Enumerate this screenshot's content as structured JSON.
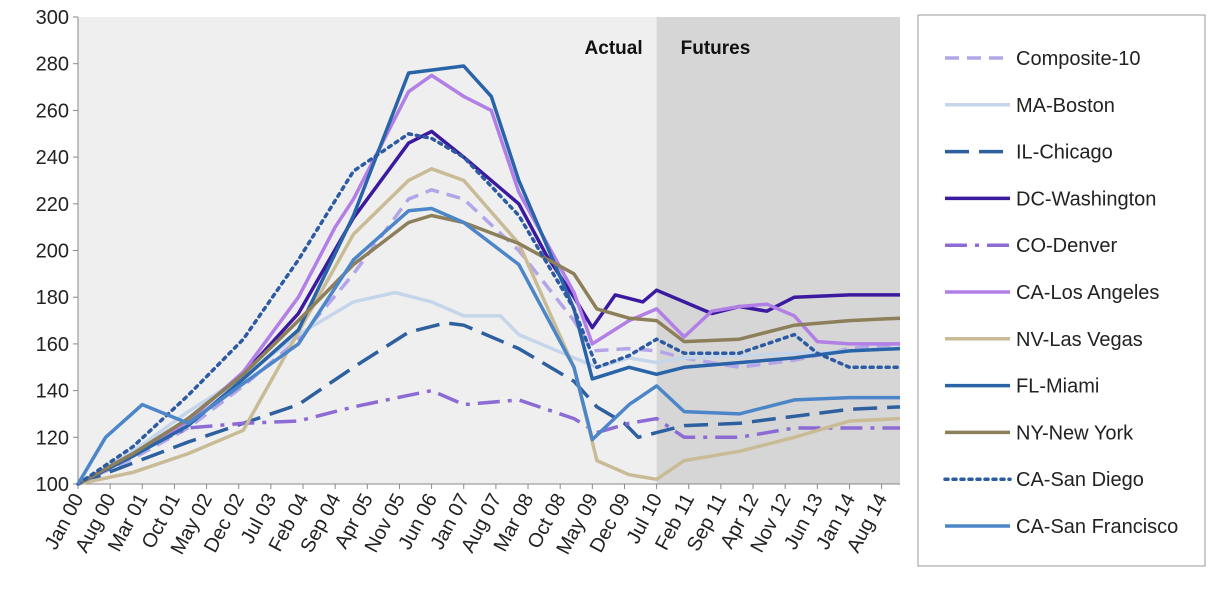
{
  "chart_data": {
    "type": "line",
    "title": "",
    "xlabel": "",
    "ylabel": "",
    "ylim": [
      100,
      300
    ],
    "y_ticks": [
      100,
      120,
      140,
      160,
      180,
      200,
      220,
      240,
      260,
      280,
      300
    ],
    "x_ticks": [
      "Jan 00",
      "Aug 00",
      "Mar 01",
      "Oct 01",
      "May 02",
      "Dec 02",
      "Jul 03",
      "Feb 04",
      "Sep 04",
      "Apr 05",
      "Nov 05",
      "Jun 06",
      "Jan 07",
      "Aug 07",
      "Mar 08",
      "Oct 08",
      "May 09",
      "Dec 09",
      "Jul 10",
      "Feb 11",
      "Sep 11",
      "Apr 12",
      "Nov 12",
      "Jun 13",
      "Jan 14",
      "Aug 14"
    ],
    "x_range": [
      "Jan 00",
      "Dec 14"
    ],
    "grid": false,
    "legend_position": "right",
    "regions": [
      {
        "label": "Actual",
        "from": "Jan 00",
        "to": "Jul 10",
        "color": "#efefef"
      },
      {
        "label": "Futures",
        "from": "Jul 10",
        "to": "Dec 14",
        "color": "#d6d6d6"
      }
    ],
    "series": [
      {
        "name": "Composite-10",
        "color": "#b3a6e8",
        "dash": "14,8",
        "width": 3.5,
        "points": [
          [
            "Jan 00",
            100
          ],
          [
            "Jan 01",
            111
          ],
          [
            "Jan 02",
            124
          ],
          [
            "Jan 03",
            142
          ],
          [
            "Jan 04",
            162
          ],
          [
            "Jan 05",
            190
          ],
          [
            "Jan 06",
            222
          ],
          [
            "Jun 06",
            226
          ],
          [
            "Jan 07",
            222
          ],
          [
            "Jan 08",
            200
          ],
          [
            "Jan 09",
            170
          ],
          [
            "May 09",
            157
          ],
          [
            "Jan 10",
            158
          ],
          [
            "Jul 10",
            157
          ],
          [
            "Jan 11",
            154
          ],
          [
            "Jan 12",
            150
          ],
          [
            "Jan 13",
            153
          ],
          [
            "Jan 14",
            158
          ],
          [
            "Dec 14",
            160
          ]
        ]
      },
      {
        "name": "MA-Boston",
        "color": "#c5d6ea",
        "dash": "",
        "width": 3.5,
        "points": [
          [
            "Jan 00",
            100
          ],
          [
            "Jan 01",
            114
          ],
          [
            "Jan 02",
            131
          ],
          [
            "Jan 03",
            146
          ],
          [
            "Jan 04",
            164
          ],
          [
            "Jan 05",
            178
          ],
          [
            "Oct 05",
            182
          ],
          [
            "Jun 06",
            178
          ],
          [
            "Jan 07",
            172
          ],
          [
            "Sep 07",
            172
          ],
          [
            "Jan 08",
            164
          ],
          [
            "Jan 09",
            154
          ],
          [
            "Jun 09",
            150
          ],
          [
            "Jan 10",
            154
          ],
          [
            "Jul 10",
            152
          ],
          [
            "Jan 11",
            154
          ],
          [
            "Jan 12",
            155
          ],
          [
            "Jan 13",
            156
          ],
          [
            "Jan 14",
            157
          ],
          [
            "Dec 14",
            158
          ]
        ]
      },
      {
        "name": "IL-Chicago",
        "color": "#2e5f9e",
        "dash": "24,10",
        "width": 3.5,
        "points": [
          [
            "Jan 00",
            100
          ],
          [
            "Jan 01",
            109
          ],
          [
            "Jan 02",
            118
          ],
          [
            "Jan 03",
            126
          ],
          [
            "Jan 04",
            134
          ],
          [
            "Jan 05",
            150
          ],
          [
            "Jan 06",
            165
          ],
          [
            "Sep 06",
            169
          ],
          [
            "Jan 07",
            168
          ],
          [
            "Jan 08",
            158
          ],
          [
            "Jan 09",
            144
          ],
          [
            "Jun 09",
            133
          ],
          [
            "Dec 09",
            126
          ],
          [
            "Mar 10",
            120
          ],
          [
            "Jul 10",
            122
          ],
          [
            "Jan 11",
            125
          ],
          [
            "Jan 12",
            126
          ],
          [
            "Jan 13",
            129
          ],
          [
            "Jan 14",
            132
          ],
          [
            "Dec 14",
            133
          ]
        ]
      },
      {
        "name": "DC-Washington",
        "color": "#3c1aa0",
        "dash": "",
        "width": 3.5,
        "points": [
          [
            "Jan 00",
            100
          ],
          [
            "Jan 01",
            112
          ],
          [
            "Jan 02",
            128
          ],
          [
            "Jan 03",
            147
          ],
          [
            "Jan 04",
            173
          ],
          [
            "Jan 05",
            214
          ],
          [
            "Jan 06",
            246
          ],
          [
            "Jun 06",
            251
          ],
          [
            "Jan 07",
            240
          ],
          [
            "Jan 08",
            220
          ],
          [
            "Jul 08",
            198
          ],
          [
            "Jan 09",
            180
          ],
          [
            "May 09",
            167
          ],
          [
            "Oct 09",
            181
          ],
          [
            "Apr 10",
            178
          ],
          [
            "Jul 10",
            183
          ],
          [
            "Jan 11",
            178
          ],
          [
            "Jul 11",
            173
          ],
          [
            "Jan 12",
            176
          ],
          [
            "Jul 12",
            174
          ],
          [
            "Jan 13",
            180
          ],
          [
            "Jan 14",
            181
          ],
          [
            "Dec 14",
            181
          ]
        ]
      },
      {
        "name": "CO-Denver",
        "color": "#8c6bd4",
        "dash": "22,8,4,8",
        "width": 3.5,
        "points": [
          [
            "Jan 00",
            100
          ],
          [
            "Jan 01",
            113
          ],
          [
            "Jan 02",
            124
          ],
          [
            "Jan 03",
            126
          ],
          [
            "Jan 04",
            127
          ],
          [
            "Jan 05",
            133
          ],
          [
            "Jan 06",
            138
          ],
          [
            "Jun 06",
            140
          ],
          [
            "Jan 07",
            134
          ],
          [
            "Jan 08",
            136
          ],
          [
            "Jan 09",
            128
          ],
          [
            "Jun 09",
            122
          ],
          [
            "Jan 10",
            126
          ],
          [
            "Jul 10",
            128
          ],
          [
            "Jan 11",
            120
          ],
          [
            "Jan 12",
            120
          ],
          [
            "Jan 13",
            124
          ],
          [
            "Jan 14",
            124
          ],
          [
            "Dec 14",
            124
          ]
        ]
      },
      {
        "name": "CA-Los Angeles",
        "color": "#b27fe6",
        "dash": "",
        "width": 3.5,
        "points": [
          [
            "Jan 00",
            100
          ],
          [
            "Jan 01",
            112
          ],
          [
            "Jan 02",
            127
          ],
          [
            "Jan 03",
            148
          ],
          [
            "Jan 04",
            180
          ],
          [
            "Sep 04",
            210
          ],
          [
            "Jan 05",
            222
          ],
          [
            "Jan 06",
            268
          ],
          [
            "Jun 06",
            275
          ],
          [
            "Jan 07",
            266
          ],
          [
            "Jul 07",
            260
          ],
          [
            "Jan 08",
            225
          ],
          [
            "Jan 09",
            182
          ],
          [
            "May 09",
            160
          ],
          [
            "Jan 10",
            170
          ],
          [
            "Jul 10",
            175
          ],
          [
            "Jan 11",
            163
          ],
          [
            "Jul 11",
            174
          ],
          [
            "Jan 12",
            176
          ],
          [
            "Jul 12",
            177
          ],
          [
            "Jan 13",
            172
          ],
          [
            "Jun 13",
            161
          ],
          [
            "Jan 14",
            160
          ],
          [
            "Dec 14",
            160
          ]
        ]
      },
      {
        "name": "NV-Las Vegas",
        "color": "#c8bb95",
        "dash": "",
        "width": 3.5,
        "points": [
          [
            "Jan 00",
            100
          ],
          [
            "Jan 01",
            105
          ],
          [
            "Jan 02",
            113
          ],
          [
            "Jan 03",
            123
          ],
          [
            "Jan 04",
            165
          ],
          [
            "Jan 05",
            207
          ],
          [
            "Jan 06",
            230
          ],
          [
            "Jun 06",
            235
          ],
          [
            "Jan 07",
            230
          ],
          [
            "Jan 08",
            203
          ],
          [
            "Jan 09",
            150
          ],
          [
            "Jun 09",
            110
          ],
          [
            "Jan 10",
            104
          ],
          [
            "Jul 10",
            102
          ],
          [
            "Jan 11",
            110
          ],
          [
            "Jan 12",
            114
          ],
          [
            "Jan 13",
            120
          ],
          [
            "Jan 14",
            127
          ],
          [
            "Dec 14",
            128
          ]
        ]
      },
      {
        "name": "FL-Miami",
        "color": "#2a64a8",
        "dash": "",
        "width": 3.5,
        "points": [
          [
            "Jan 00",
            100
          ],
          [
            "Jan 01",
            112
          ],
          [
            "Jan 02",
            125
          ],
          [
            "Jan 03",
            145
          ],
          [
            "Jan 04",
            166
          ],
          [
            "Jan 05",
            215
          ],
          [
            "Jan 06",
            276
          ],
          [
            "Jan 07",
            279
          ],
          [
            "Jul 07",
            266
          ],
          [
            "Jan 08",
            230
          ],
          [
            "Jan 09",
            175
          ],
          [
            "May 09",
            145
          ],
          [
            "Jan 10",
            150
          ],
          [
            "Jul 10",
            147
          ],
          [
            "Jan 11",
            150
          ],
          [
            "Jan 12",
            152
          ],
          [
            "Jan 13",
            154
          ],
          [
            "Jan 14",
            157
          ],
          [
            "Dec 14",
            158
          ]
        ]
      },
      {
        "name": "NY-New York",
        "color": "#8c7f5a",
        "dash": "",
        "width": 3.5,
        "points": [
          [
            "Jan 00",
            100
          ],
          [
            "Jan 01",
            113
          ],
          [
            "Jan 02",
            128
          ],
          [
            "Jan 03",
            147
          ],
          [
            "Jan 04",
            170
          ],
          [
            "Jan 05",
            194
          ],
          [
            "Jan 06",
            212
          ],
          [
            "Jun 06",
            215
          ],
          [
            "Jan 07",
            212
          ],
          [
            "Jan 08",
            203
          ],
          [
            "Jan 09",
            190
          ],
          [
            "Jun 09",
            175
          ],
          [
            "Jan 10",
            171
          ],
          [
            "Jul 10",
            170
          ],
          [
            "Jan 11",
            161
          ],
          [
            "Jan 12",
            162
          ],
          [
            "Jan 13",
            168
          ],
          [
            "Jan 14",
            170
          ],
          [
            "Dec 14",
            171
          ]
        ]
      },
      {
        "name": "CA-San Diego",
        "color": "#2c5ba3",
        "dash": "3,5",
        "width": 3.5,
        "points": [
          [
            "Jan 00",
            100
          ],
          [
            "Jan 01",
            116
          ],
          [
            "Jan 02",
            138
          ],
          [
            "Jan 03",
            162
          ],
          [
            "Jan 04",
            196
          ],
          [
            "Jan 05",
            234
          ],
          [
            "Jan 06",
            250
          ],
          [
            "Jun 06",
            248
          ],
          [
            "Jan 07",
            240
          ],
          [
            "Jan 08",
            215
          ],
          [
            "Jan 09",
            175
          ],
          [
            "Jun 09",
            150
          ],
          [
            "Jan 10",
            155
          ],
          [
            "Jul 10",
            162
          ],
          [
            "Jan 11",
            156
          ],
          [
            "Jan 12",
            156
          ],
          [
            "Jan 13",
            164
          ],
          [
            "Jun 13",
            156
          ],
          [
            "Jan 14",
            150
          ],
          [
            "Dec 14",
            150
          ]
        ]
      },
      {
        "name": "CA-San Francisco",
        "color": "#4d86c8",
        "dash": "",
        "width": 3.5,
        "points": [
          [
            "Jan 00",
            100
          ],
          [
            "Jul 00",
            120
          ],
          [
            "Mar 01",
            134
          ],
          [
            "Jan 02",
            126
          ],
          [
            "Jan 03",
            143
          ],
          [
            "Jan 04",
            160
          ],
          [
            "Jan 05",
            196
          ],
          [
            "Jan 06",
            217
          ],
          [
            "Jun 06",
            218
          ],
          [
            "Jan 07",
            212
          ],
          [
            "Jan 08",
            194
          ],
          [
            "Jan 09",
            150
          ],
          [
            "May 09",
            119
          ],
          [
            "Jan 10",
            134
          ],
          [
            "Jul 10",
            142
          ],
          [
            "Jan 11",
            131
          ],
          [
            "Jan 12",
            130
          ],
          [
            "Jan 13",
            136
          ],
          [
            "Jan 14",
            137
          ],
          [
            "Dec 14",
            137
          ]
        ]
      }
    ]
  }
}
